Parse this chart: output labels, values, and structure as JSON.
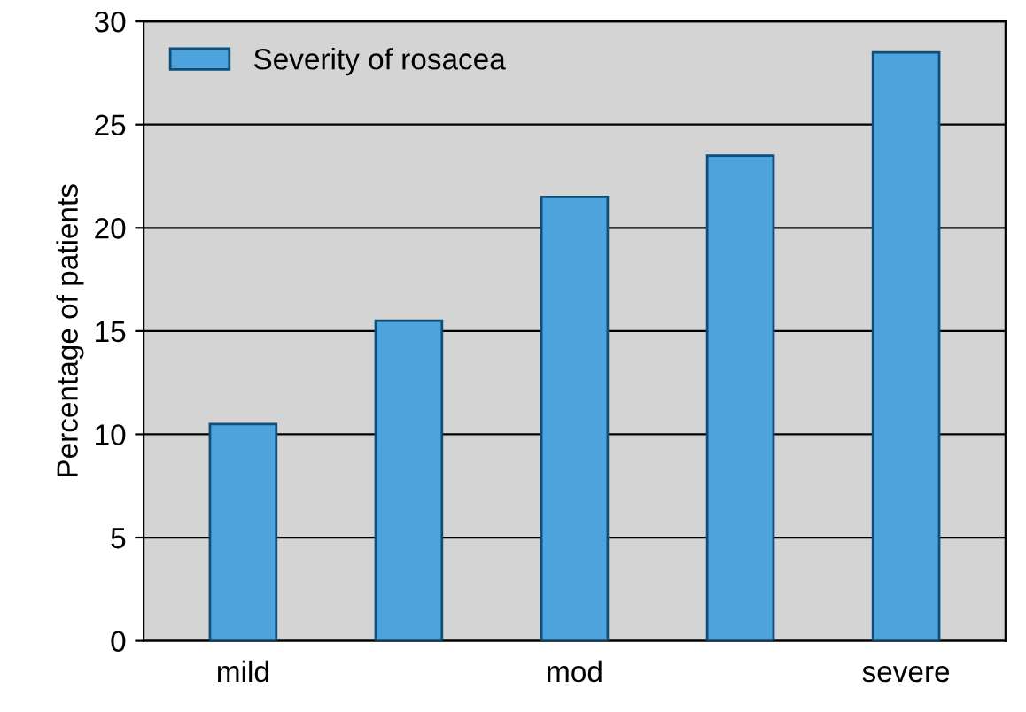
{
  "chart_data": {
    "type": "bar",
    "ylabel": "Percentage of patients",
    "categories": [
      "mild",
      null,
      "mod",
      null,
      "severe"
    ],
    "series": [
      {
        "name": "Severity of rosacea",
        "color": "#4fa3dc",
        "values": [
          10.5,
          15.5,
          21.5,
          23.5,
          28.5
        ]
      }
    ],
    "ylim": [
      0,
      30
    ],
    "yticks": [
      0,
      5,
      10,
      15,
      20,
      25,
      30
    ],
    "grid": "y",
    "legend": "top left"
  }
}
